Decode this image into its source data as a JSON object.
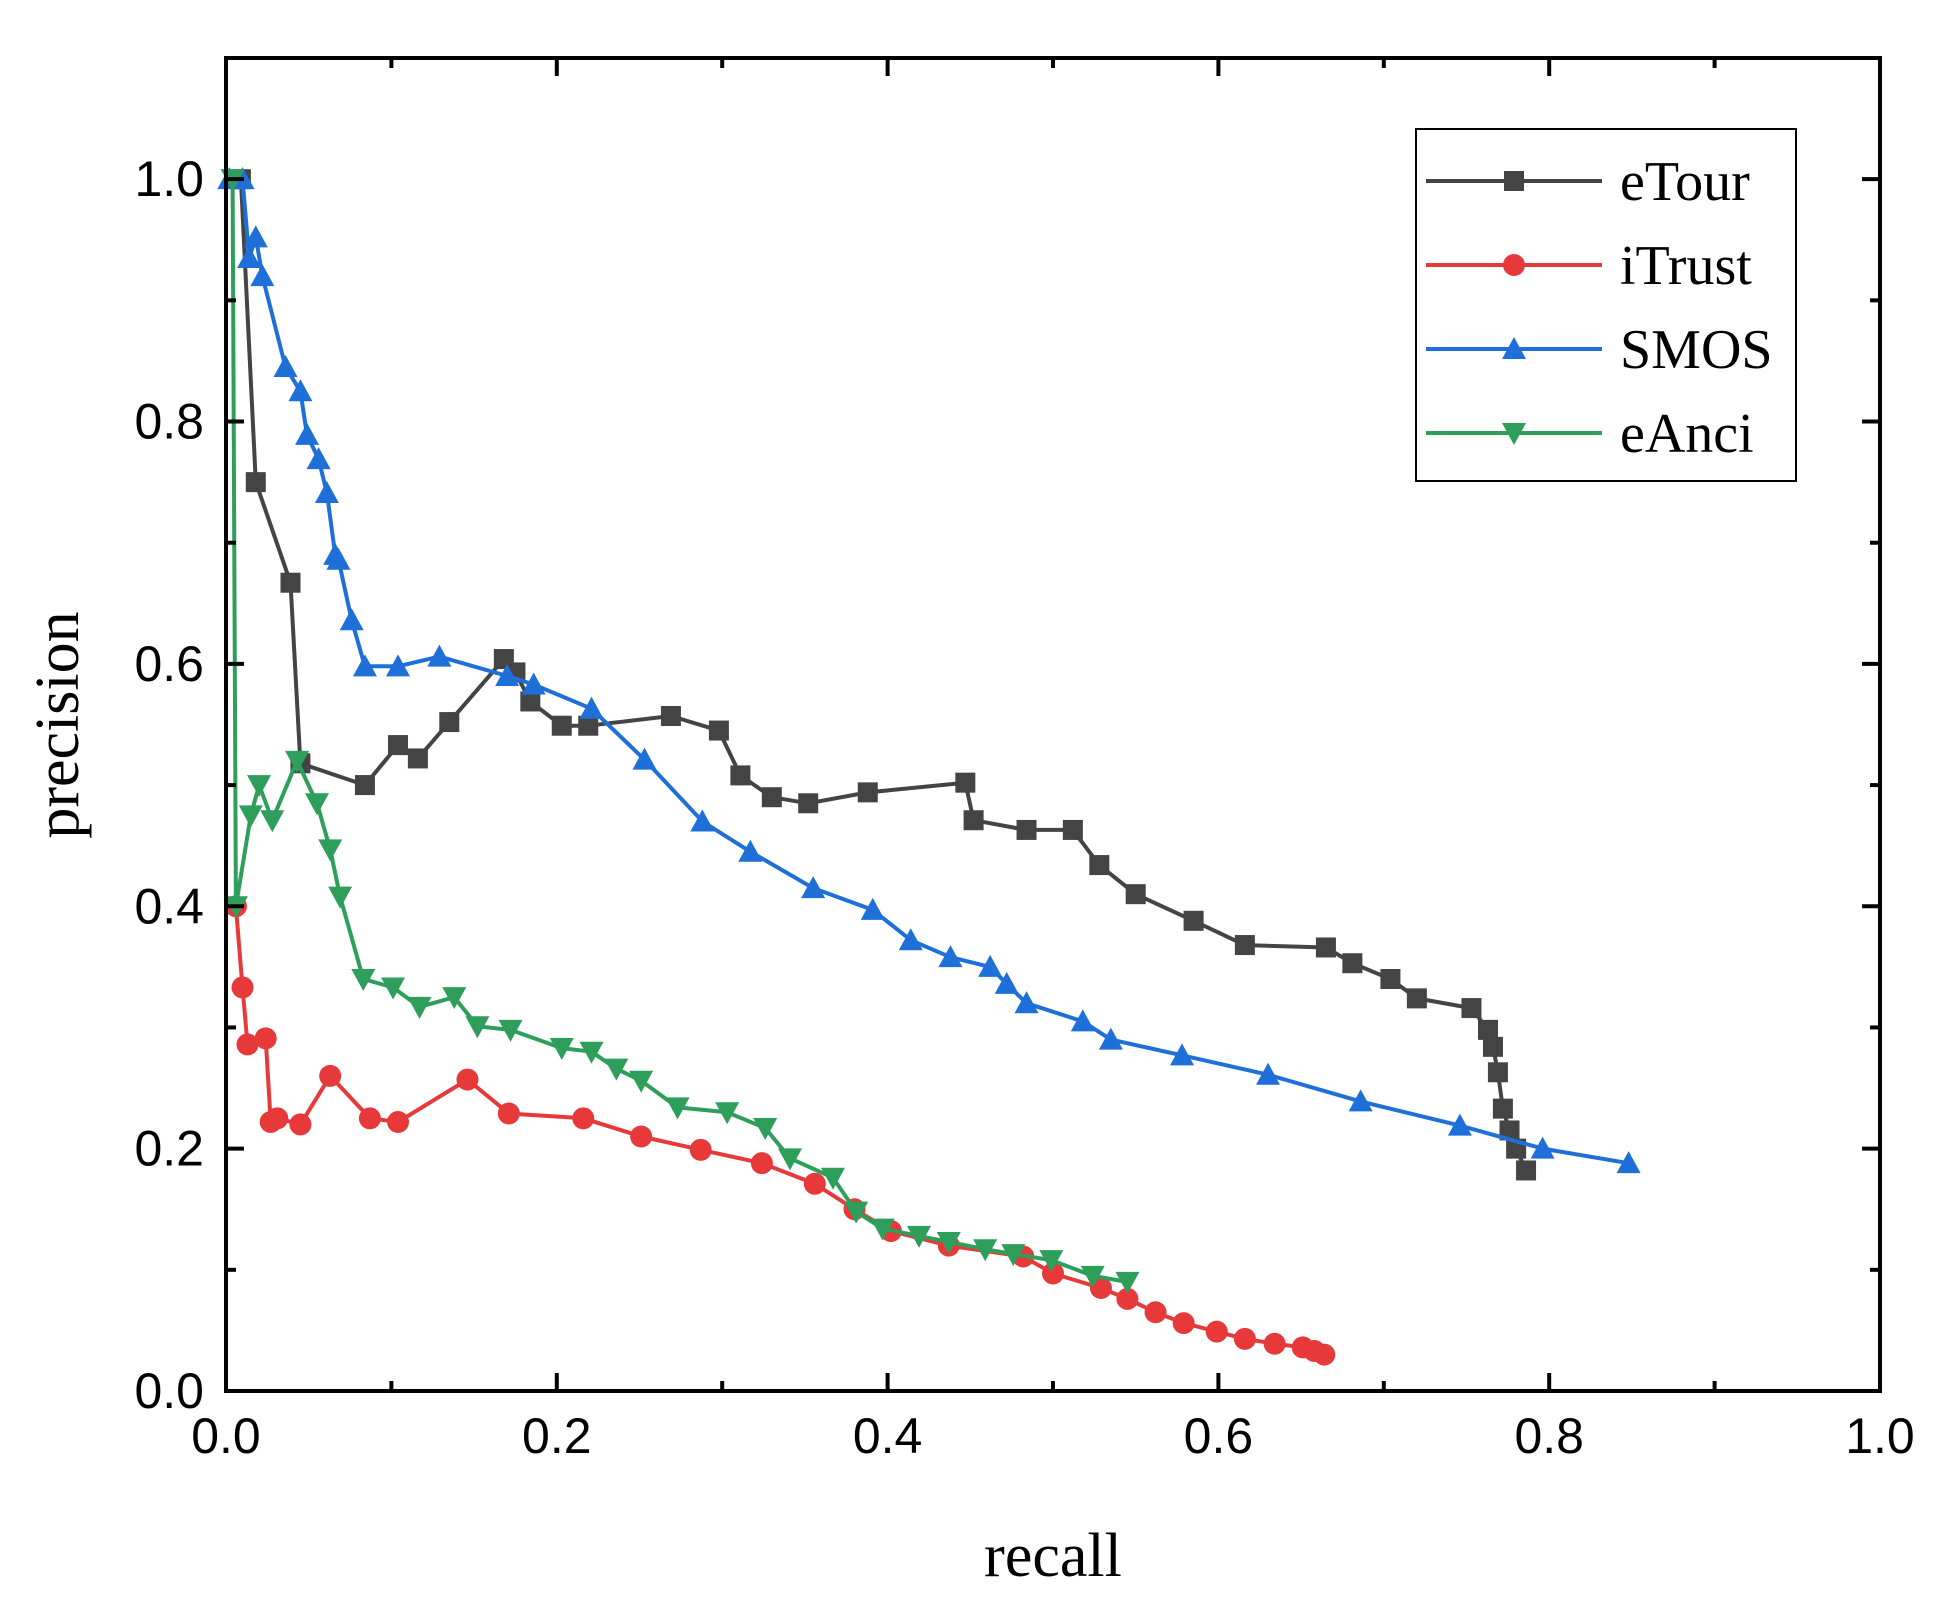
{
  "chart_data": {
    "type": "line",
    "title": "",
    "xlabel": "recall",
    "ylabel": "precision",
    "xlim": [
      0.0,
      1.0
    ],
    "ylim": [
      0.0,
      1.1
    ],
    "xticks": [
      "0.0",
      "0.2",
      "0.4",
      "0.6",
      "0.8",
      "1.0"
    ],
    "yticks": [
      "0.0",
      "0.2",
      "0.4",
      "0.6",
      "0.8",
      "1.0"
    ],
    "legend_position": "top-right",
    "grid": false,
    "series": [
      {
        "name": "eTour",
        "color": "#444444",
        "marker": "square",
        "x": [
          0.009,
          0.018,
          0.039,
          0.045,
          0.084,
          0.104,
          0.116,
          0.135,
          0.168,
          0.175,
          0.184,
          0.203,
          0.219,
          0.269,
          0.298,
          0.311,
          0.33,
          0.352,
          0.388,
          0.447,
          0.452,
          0.484,
          0.512,
          0.528,
          0.55,
          0.585,
          0.616,
          0.665,
          0.681,
          0.704,
          0.72,
          0.753,
          0.763,
          0.766,
          0.769,
          0.772,
          0.776,
          0.78,
          0.786
        ],
        "y": [
          1.0,
          0.75,
          0.667,
          0.518,
          0.5,
          0.533,
          0.522,
          0.552,
          0.604,
          0.593,
          0.569,
          0.549,
          0.549,
          0.557,
          0.545,
          0.508,
          0.49,
          0.485,
          0.494,
          0.502,
          0.471,
          0.463,
          0.463,
          0.434,
          0.41,
          0.388,
          0.368,
          0.366,
          0.353,
          0.34,
          0.324,
          0.316,
          0.298,
          0.284,
          0.263,
          0.233,
          0.215,
          0.2,
          0.182
        ]
      },
      {
        "name": "iTrust",
        "color": "#e8393a",
        "marker": "circle",
        "x": [
          0.006,
          0.01,
          0.013,
          0.024,
          0.027,
          0.031,
          0.045,
          0.063,
          0.087,
          0.104,
          0.146,
          0.171,
          0.216,
          0.251,
          0.287,
          0.324,
          0.356,
          0.38,
          0.402,
          0.437,
          0.482,
          0.5,
          0.529,
          0.545,
          0.562,
          0.579,
          0.599,
          0.616,
          0.634,
          0.651,
          0.658,
          0.664
        ],
        "y": [
          0.4,
          0.333,
          0.286,
          0.291,
          0.222,
          0.225,
          0.22,
          0.26,
          0.225,
          0.222,
          0.257,
          0.229,
          0.225,
          0.21,
          0.199,
          0.188,
          0.171,
          0.15,
          0.132,
          0.12,
          0.111,
          0.097,
          0.085,
          0.076,
          0.065,
          0.056,
          0.049,
          0.043,
          0.039,
          0.036,
          0.033,
          0.03
        ]
      },
      {
        "name": "SMOS",
        "color": "#1f6fd8",
        "marker": "triangle-up",
        "x": [
          0.002,
          0.01,
          0.014,
          0.018,
          0.022,
          0.036,
          0.045,
          0.049,
          0.056,
          0.061,
          0.066,
          0.068,
          0.076,
          0.084,
          0.104,
          0.129,
          0.17,
          0.186,
          0.221,
          0.253,
          0.288,
          0.317,
          0.355,
          0.391,
          0.414,
          0.438,
          0.462,
          0.472,
          0.484,
          0.518,
          0.535,
          0.578,
          0.63,
          0.686,
          0.746,
          0.796,
          0.848
        ],
        "y": [
          1.0,
          1.0,
          0.935,
          0.952,
          0.92,
          0.845,
          0.825,
          0.789,
          0.769,
          0.741,
          0.69,
          0.686,
          0.636,
          0.598,
          0.598,
          0.606,
          0.59,
          0.583,
          0.563,
          0.521,
          0.47,
          0.445,
          0.415,
          0.397,
          0.372,
          0.358,
          0.35,
          0.336,
          0.32,
          0.305,
          0.29,
          0.277,
          0.261,
          0.239,
          0.219,
          0.2,
          0.188
        ]
      },
      {
        "name": "eAnci",
        "color": "#2e9e5b",
        "marker": "triangle-down",
        "x": [
          0.004,
          0.006,
          0.015,
          0.02,
          0.028,
          0.043,
          0.055,
          0.063,
          0.069,
          0.083,
          0.101,
          0.117,
          0.138,
          0.152,
          0.172,
          0.203,
          0.221,
          0.236,
          0.251,
          0.273,
          0.303,
          0.326,
          0.341,
          0.367,
          0.381,
          0.397,
          0.419,
          0.437,
          0.459,
          0.476,
          0.499,
          0.524,
          0.545
        ],
        "y": [
          1.0,
          0.4,
          0.475,
          0.5,
          0.471,
          0.52,
          0.485,
          0.447,
          0.408,
          0.34,
          0.333,
          0.317,
          0.325,
          0.301,
          0.298,
          0.283,
          0.28,
          0.266,
          0.256,
          0.234,
          0.23,
          0.217,
          0.192,
          0.176,
          0.148,
          0.134,
          0.128,
          0.123,
          0.117,
          0.113,
          0.108,
          0.095,
          0.09
        ]
      }
    ]
  }
}
